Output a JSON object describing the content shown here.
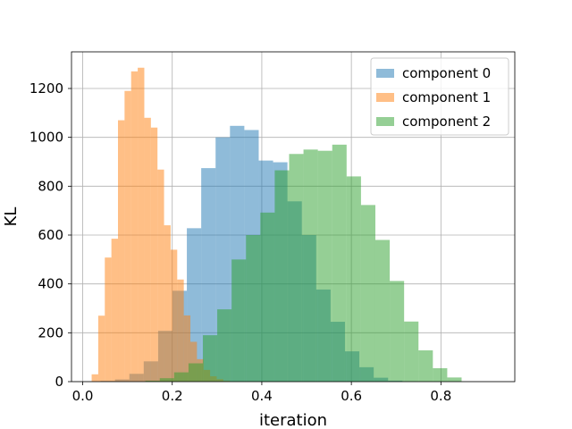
{
  "chart_data": {
    "type": "bar",
    "subtype": "histogram",
    "xlabel": "iteration",
    "ylabel": "KL",
    "xlim": [
      -0.025,
      0.965
    ],
    "ylim": [
      0,
      1350
    ],
    "xticks": [
      0.0,
      0.2,
      0.4,
      0.6,
      0.8
    ],
    "xtick_labels": [
      "0.0",
      "0.2",
      "0.4",
      "0.6",
      "0.8"
    ],
    "yticks": [
      0,
      200,
      400,
      600,
      800,
      1000,
      1200
    ],
    "ytick_labels": [
      "0",
      "200",
      "400",
      "600",
      "800",
      "1000",
      "1200"
    ],
    "grid": true,
    "legend_position": "top-right",
    "series": [
      {
        "name": "component 0",
        "color": "#1f77b4",
        "alpha": 0.5,
        "bin_start": 0.04,
        "bin_width": 0.0321,
        "counts": [
          3,
          9,
          32,
          83,
          208,
          372,
          628,
          874,
          1000,
          1047,
          1030,
          905,
          898,
          738,
          600,
          377,
          245,
          124,
          59,
          16,
          4,
          1
        ]
      },
      {
        "name": "component 1",
        "color": "#ff7f0e",
        "alpha": 0.5,
        "bin_start": 0.02,
        "bin_width": 0.0147,
        "counts": [
          30,
          270,
          508,
          585,
          1070,
          1190,
          1270,
          1285,
          1080,
          1040,
          868,
          640,
          540,
          418,
          271,
          163,
          92,
          48,
          22,
          10,
          3
        ]
      },
      {
        "name": "component 2",
        "color": "#2ca02c",
        "alpha": 0.5,
        "bin_start": 0.14,
        "bin_width": 0.0321,
        "counts": [
          4,
          14,
          38,
          75,
          190,
          296,
          500,
          600,
          692,
          865,
          932,
          950,
          945,
          970,
          840,
          723,
          580,
          412,
          246,
          128,
          55,
          17
        ]
      }
    ]
  }
}
